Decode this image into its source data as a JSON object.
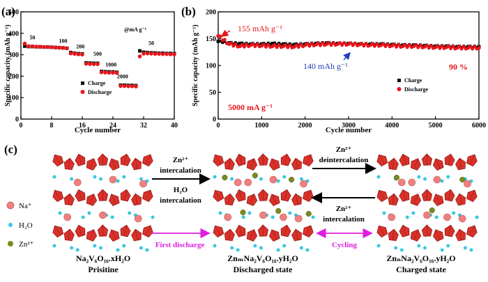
{
  "chart_data": [
    {
      "panel_label": "(a)",
      "type": "scatter",
      "xlabel": "Cycle number",
      "ylabel": "Specific capacity (mAh g⁻¹)",
      "xlim": [
        0,
        40
      ],
      "ylim": [
        0,
        500
      ],
      "xticks": [
        0,
        8,
        16,
        24,
        32,
        40
      ],
      "yticks": [
        0,
        100,
        200,
        300,
        400,
        500
      ],
      "unit_note": "@mA g⁻¹",
      "rate_labels": [
        {
          "text": "50",
          "x": 3,
          "y": 372
        },
        {
          "text": "100",
          "x": 11,
          "y": 355
        },
        {
          "text": "200",
          "x": 15.5,
          "y": 330
        },
        {
          "text": "500",
          "x": 20,
          "y": 295
        },
        {
          "text": "1000",
          "x": 23.5,
          "y": 245
        },
        {
          "text": "2000",
          "x": 26.5,
          "y": 190
        },
        {
          "text": "50",
          "x": 34,
          "y": 345
        }
      ],
      "series": [
        {
          "name": "Charge",
          "color": "#111111",
          "marker": "square",
          "x": [
            1,
            2,
            3,
            4,
            5,
            6,
            7,
            8,
            9,
            10,
            11,
            12,
            13,
            14,
            15,
            16,
            17,
            18,
            19,
            20,
            21,
            22,
            23,
            24,
            25,
            26,
            27,
            28,
            29,
            30,
            31,
            32,
            33,
            34,
            35,
            36,
            37,
            38,
            39,
            40
          ],
          "y": [
            340,
            338,
            338,
            337,
            337,
            336,
            336,
            335,
            334,
            333,
            332,
            330,
            310,
            307,
            305,
            304,
            262,
            261,
            260,
            260,
            222,
            221,
            220,
            220,
            218,
            158,
            158,
            157,
            157,
            156,
            318,
            312,
            310,
            309,
            308,
            307,
            307,
            306,
            306,
            305
          ]
        },
        {
          "name": "Discharge",
          "color": "#e8141b",
          "marker": "circle",
          "x": [
            1,
            2,
            3,
            4,
            5,
            6,
            7,
            8,
            9,
            10,
            11,
            12,
            13,
            14,
            15,
            16,
            17,
            18,
            19,
            20,
            21,
            22,
            23,
            24,
            25,
            26,
            27,
            28,
            29,
            30,
            31,
            32,
            33,
            34,
            35,
            36,
            37,
            38,
            39,
            40
          ],
          "y": [
            352,
            340,
            339,
            338,
            337,
            336,
            336,
            335,
            334,
            333,
            332,
            330,
            306,
            304,
            302,
            301,
            258,
            257,
            256,
            256,
            218,
            217,
            216,
            216,
            215,
            154,
            154,
            153,
            153,
            152,
            292,
            305,
            306,
            305,
            304,
            304,
            303,
            303,
            302,
            302
          ]
        }
      ],
      "legend": [
        "Charge",
        "Discharge"
      ],
      "legend_position": "center"
    },
    {
      "panel_label": "(b)",
      "type": "scatter",
      "xlabel": "Cycle number",
      "ylabel": "Specific capacity (mAh g⁻¹)",
      "xlim": [
        0,
        6000
      ],
      "ylim": [
        0,
        200
      ],
      "xticks": [
        0,
        1000,
        2000,
        3000,
        4000,
        5000,
        6000
      ],
      "yticks": [
        0,
        50,
        100,
        150,
        200
      ],
      "annotations": [
        {
          "text": "155 mAh g⁻¹",
          "color": "#e8141b"
        },
        {
          "text": "140 mAh g⁻¹",
          "color": "#1f3fbf"
        },
        {
          "text": "90 %",
          "color": "#e8141b"
        },
        {
          "text": "5000 mA g⁻¹",
          "color": "#e8141b"
        }
      ],
      "series": [
        {
          "name": "Charge",
          "color": "#111111",
          "marker": "square",
          "x": [
            0,
            250,
            500,
            750,
            1000,
            1250,
            1500,
            1750,
            2000,
            2250,
            2500,
            2750,
            3000,
            3250,
            3500,
            3750,
            4000,
            4250,
            4500,
            4750,
            5000,
            5250,
            5500,
            5750,
            6000
          ],
          "y": [
            145,
            142,
            141,
            140,
            140,
            141,
            140,
            139,
            140,
            141,
            142,
            141,
            141,
            140,
            140,
            140,
            139,
            138,
            138,
            137,
            136,
            136,
            135,
            135,
            135
          ]
        },
        {
          "name": "Discharge",
          "color": "#e8141b",
          "marker": "circle",
          "x": [
            0,
            250,
            500,
            750,
            1000,
            1250,
            1500,
            1750,
            2000,
            2250,
            2500,
            2750,
            3000,
            3250,
            3500,
            3750,
            4000,
            4250,
            4500,
            4750,
            5000,
            5250,
            5500,
            5750,
            6000
          ],
          "y": [
            155,
            140,
            136,
            138,
            137,
            136,
            136,
            135,
            138,
            139,
            140,
            140,
            140,
            139,
            138,
            138,
            137,
            136,
            136,
            135,
            134,
            134,
            133,
            133,
            133
          ]
        }
      ],
      "legend": [
        "Charge",
        "Discharge"
      ],
      "legend_position": "bottom-right"
    }
  ],
  "schematic": {
    "panel_label": "(c)",
    "legend": [
      {
        "label": "Na⁺",
        "color": "#f08080"
      },
      {
        "label": "H₂O",
        "color": "#37c8e0"
      },
      {
        "label": "Zn²⁺",
        "color": "#7a8a1e"
      }
    ],
    "arrows": {
      "zn_intercalation_top": "Zn²⁺",
      "zn_intercalation_bottom": "intercalation",
      "h2o_top": "H₂O",
      "h2o_bottom": "intercalation",
      "first_discharge": "First discharge",
      "deint_top": "Zn²⁺",
      "deint_bottom": "deintercalation",
      "int_top": "Zn²⁺",
      "int_bottom": "intercalation",
      "cycling": "Cycling"
    },
    "states": [
      {
        "formula": "Na₂V₆O₁₆.xH₂O",
        "caption": "Prisitine"
      },
      {
        "formula": "ZnₘNa₂V₆O₁₆.yH₂O",
        "caption": "Discharged state"
      },
      {
        "formula": "ZnₙNa₂V₆O₁₆.yH₂O",
        "caption": "Charged state"
      }
    ],
    "colors": {
      "octahedra": "#d9312a",
      "octahedra_edge": "#8a1410",
      "black_arrow": "#000000",
      "magenta_arrow": "#e01ee0"
    }
  }
}
